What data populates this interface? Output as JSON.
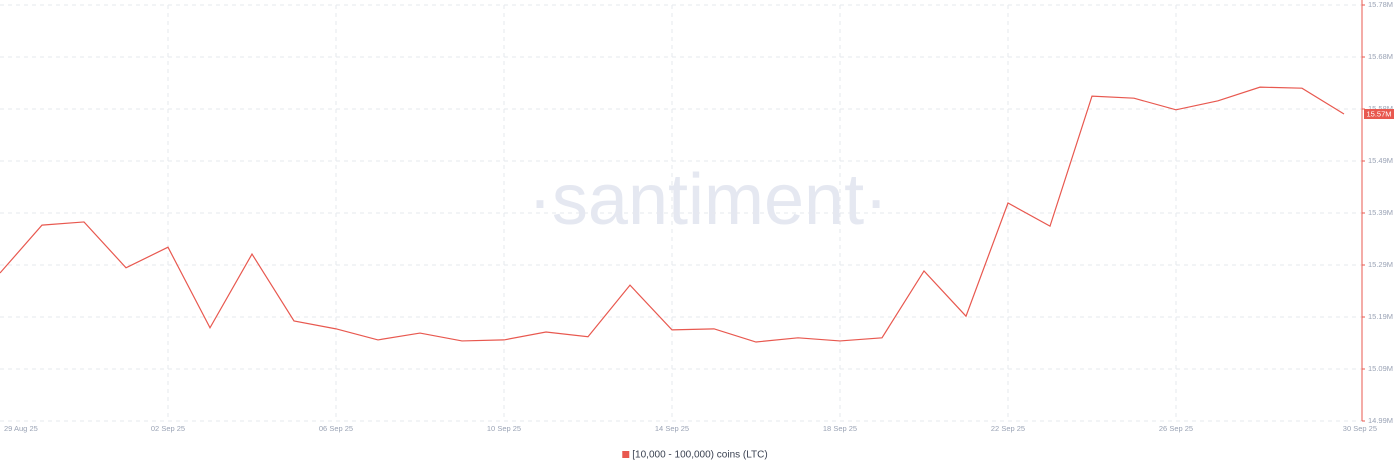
{
  "chart_data": {
    "type": "line",
    "watermark": "·santiment·",
    "categories": [
      "29 Aug 25",
      null,
      null,
      null,
      "02 Sep 25",
      null,
      null,
      null,
      "06 Sep 25",
      null,
      null,
      null,
      "10 Sep 25",
      null,
      null,
      null,
      "14 Sep 25",
      null,
      null,
      null,
      "18 Sep 25",
      null,
      null,
      null,
      "22 Sep 25",
      null,
      null,
      null,
      "26 Sep 25",
      null,
      null,
      null,
      "30 Sep 25"
    ],
    "series": [
      {
        "name": "[10,000 - 100,000) coins (LTC)",
        "color": "#e8584f",
        "last_label": "15.57M",
        "values": [
          15.271,
          15.362,
          15.368,
          15.281,
          15.32,
          15.167,
          15.307,
          15.18,
          15.165,
          15.144,
          15.157,
          15.142,
          15.144,
          15.159,
          15.15,
          15.248,
          15.163,
          15.165,
          15.14,
          15.148,
          15.142,
          15.148,
          15.275,
          15.189,
          15.404,
          15.36,
          15.607,
          15.603,
          15.581,
          15.598,
          15.624,
          15.622,
          15.573
        ]
      }
    ],
    "ylim": [
      14.99,
      15.78
    ],
    "yticks": [
      {
        "value": 14.99,
        "label": "14.99M"
      },
      {
        "value": 15.08875,
        "label": "15.09M"
      },
      {
        "value": 15.1875,
        "label": "15.19M"
      },
      {
        "value": 15.28625,
        "label": "15.29M"
      },
      {
        "value": 15.385,
        "label": "15.39M"
      },
      {
        "value": 15.48375,
        "label": "15.49M"
      },
      {
        "value": 15.5825,
        "label": "15.58M"
      },
      {
        "value": 15.68125,
        "label": "15.68M"
      },
      {
        "value": 15.78,
        "label": "15.78M"
      }
    ],
    "y_axis_side": "right",
    "grid": true,
    "legend": "bottom"
  }
}
